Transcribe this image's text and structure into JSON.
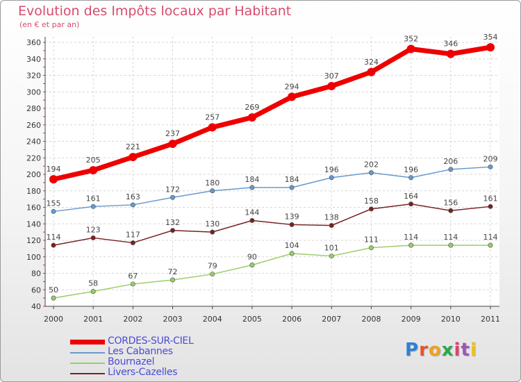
{
  "title": "Evolution des Impôts locaux par Habitant",
  "subtitle": "(en € et par an)",
  "logo": {
    "text": "Proxiti",
    "colors": [
      "#2f7fd6",
      "#e5532b",
      "#f0a020",
      "#2aa84a",
      "#e04070",
      "#9b59b6",
      "#f0c020"
    ]
  },
  "chart_data": {
    "type": "line",
    "title": "Evolution des Impôts locaux par Habitant",
    "ylabel": "(en € et par an)",
    "xlabel": "",
    "x": [
      "2000",
      "2001",
      "2002",
      "2003",
      "2004",
      "2005",
      "2006",
      "2007",
      "2008",
      "2009",
      "2010",
      "2011"
    ],
    "ylim": [
      40,
      360
    ],
    "yticks": [
      40,
      60,
      80,
      100,
      120,
      140,
      160,
      180,
      200,
      220,
      240,
      260,
      280,
      300,
      320,
      340,
      360
    ],
    "grid": true,
    "legend": "bottom-left",
    "series": [
      {
        "name": "CORDES-SUR-CIEL",
        "color": "#ee0000",
        "values": [
          194,
          205,
          221,
          237,
          257,
          269,
          294,
          307,
          324,
          352,
          346,
          354
        ]
      },
      {
        "name": "Les Cabannes",
        "color": "#6699cc",
        "values": [
          155,
          161,
          163,
          172,
          180,
          184,
          184,
          196,
          202,
          196,
          206,
          209
        ]
      },
      {
        "name": "Bournazel",
        "color": "#99cc66",
        "values": [
          50,
          58,
          67,
          72,
          79,
          90,
          104,
          101,
          111,
          114,
          114,
          114
        ]
      },
      {
        "name": "Livers-Cazelles",
        "color": "#772222",
        "values": [
          114,
          123,
          117,
          132,
          130,
          144,
          139,
          138,
          158,
          164,
          156,
          161
        ]
      }
    ]
  }
}
